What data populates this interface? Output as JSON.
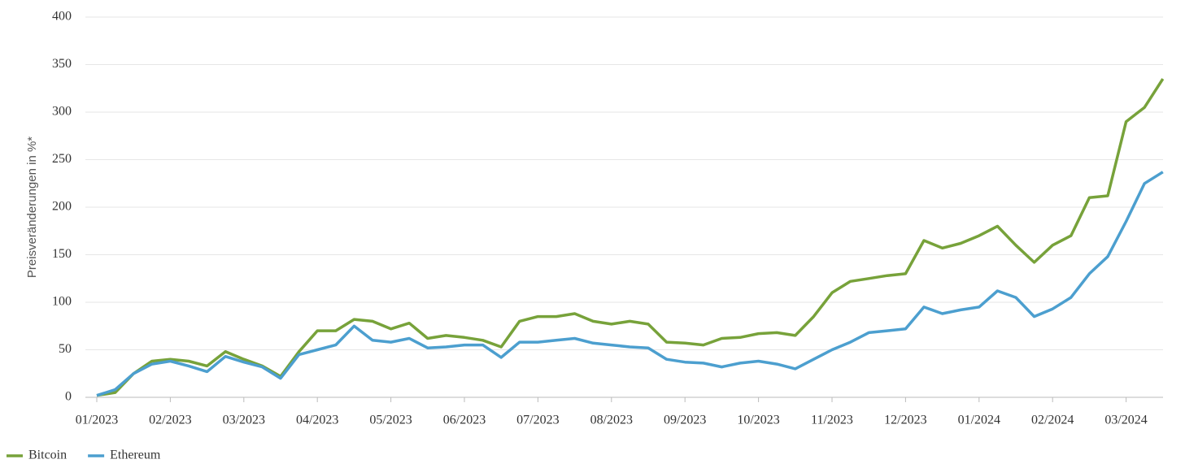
{
  "chart_data": {
    "type": "line",
    "y_label": "Preisveränderungen in %*",
    "categories": [
      "01/2023",
      null,
      null,
      null,
      "02/2023",
      null,
      null,
      null,
      "03/2023",
      null,
      null,
      null,
      "04/2023",
      null,
      null,
      null,
      "05/2023",
      null,
      null,
      null,
      "06/2023",
      null,
      null,
      null,
      "07/2023",
      null,
      null,
      null,
      "08/2023",
      null,
      null,
      null,
      "09/2023",
      null,
      null,
      null,
      "10/2023",
      null,
      null,
      null,
      "11/2023",
      null,
      null,
      null,
      "12/2023",
      null,
      null,
      null,
      "01/2024",
      null,
      null,
      null,
      "02/2024",
      null,
      null,
      null,
      "03/2024",
      null,
      null
    ],
    "series": [
      {
        "name": "Bitcoin",
        "color": "#77a23a",
        "values": [
          2,
          5,
          25,
          38,
          40,
          38,
          33,
          48,
          40,
          33,
          22,
          48,
          70,
          70,
          82,
          80,
          72,
          78,
          62,
          65,
          63,
          60,
          53,
          80,
          85,
          85,
          88,
          80,
          77,
          80,
          77,
          58,
          57,
          55,
          62,
          63,
          67,
          68,
          65,
          85,
          110,
          122,
          125,
          128,
          130,
          165,
          157,
          162,
          170,
          180,
          160,
          142,
          160,
          170,
          210,
          212,
          290,
          305,
          335
        ]
      },
      {
        "name": "Ethereum",
        "color": "#4c9fcf",
        "values": [
          2,
          8,
          25,
          35,
          38,
          33,
          27,
          43,
          37,
          32,
          20,
          45,
          50,
          55,
          75,
          60,
          58,
          62,
          52,
          53,
          55,
          55,
          42,
          58,
          58,
          60,
          62,
          57,
          55,
          53,
          52,
          40,
          37,
          36,
          32,
          36,
          38,
          35,
          30,
          40,
          50,
          58,
          68,
          70,
          72,
          95,
          88,
          92,
          95,
          112,
          105,
          85,
          93,
          105,
          130,
          148,
          185,
          225,
          237
        ]
      }
    ],
    "ylim": [
      0,
      400
    ],
    "yticks": [
      0,
      50,
      100,
      150,
      200,
      250,
      300,
      350,
      400
    ],
    "grid": true,
    "legend": "bottom-left"
  }
}
